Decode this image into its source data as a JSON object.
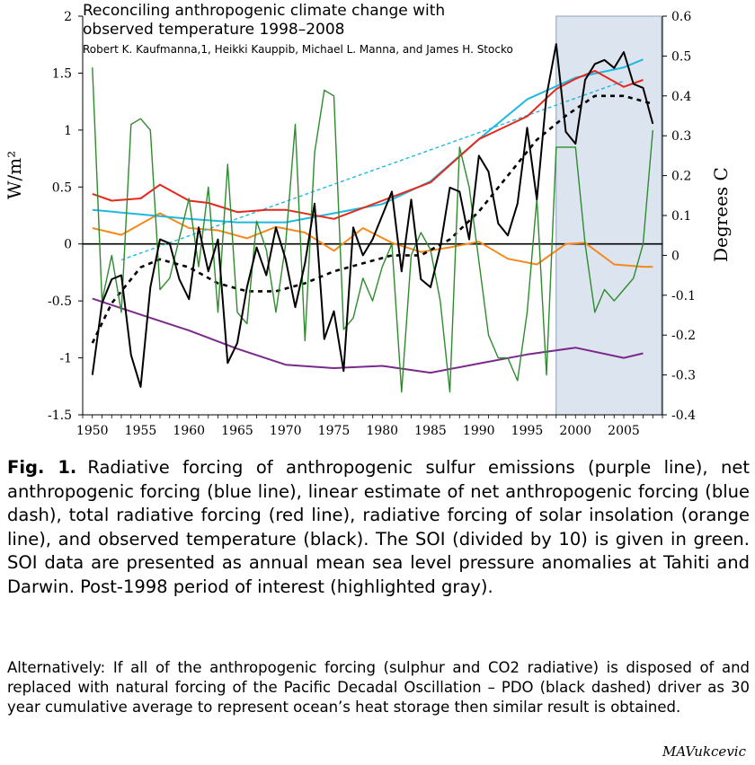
{
  "chart_data": {
    "type": "line",
    "title": "Reconciling anthropogenic climate change with observed temperature 1998–2008",
    "subtitle": "Robert K. Kaufmanna,1, Heikki Kauppib, Michael L. Manna, and James H. Stocko",
    "ylabel": "W/m²",
    "ylabel_right": "Degrees C",
    "xlim": [
      1949,
      2009
    ],
    "ylim": [
      -1.5,
      2
    ],
    "ylim_right": [
      -0.4,
      0.6
    ],
    "x_ticks": [
      1950,
      1955,
      1960,
      1965,
      1970,
      1975,
      1980,
      1985,
      1990,
      1995,
      2000,
      2005
    ],
    "y_ticks": [
      -1.5,
      -1,
      -0.5,
      0,
      0.5,
      1,
      1.5,
      2
    ],
    "y_tick_labels": [
      "-1.5",
      "-1",
      "-0.5",
      "0",
      "0.5",
      "1",
      "1.5",
      "2"
    ],
    "y2_ticks": [
      -0.4,
      -0.3,
      -0.2,
      -0.1,
      0,
      0.1,
      0.2,
      0.3,
      0.4,
      0.5,
      0.6
    ],
    "y2_tick_labels": [
      "-0.4",
      "-0.3",
      "-0.2",
      "-0.1",
      "0",
      "0.1",
      "0.2",
      "0.3",
      "0.4",
      "0.5",
      "0.6"
    ],
    "highlight": {
      "x_start": 1998,
      "x_end": 2009,
      "color": "#dbe4ef"
    },
    "zero_line": 0,
    "series": [
      {
        "key": "sulfur",
        "axis": "left",
        "color": "#7a2a8a",
        "dashed": false,
        "x": [
          1950,
          1955,
          1960,
          1965,
          1970,
          1975,
          1980,
          1985,
          1990,
          1995,
          2000,
          2005,
          2007
        ],
        "values": [
          -0.48,
          -0.62,
          -0.76,
          -0.92,
          -1.06,
          -1.09,
          -1.07,
          -1.13,
          -1.05,
          -0.97,
          -0.91,
          -1.0,
          -0.96
        ]
      },
      {
        "key": "net_anthro",
        "axis": "left",
        "color": "#1fb8e0",
        "dashed": false,
        "x": [
          1950,
          1955,
          1960,
          1965,
          1970,
          1975,
          1980,
          1985,
          1990,
          1995,
          2000,
          2005,
          2007
        ],
        "values": [
          0.3,
          0.26,
          0.22,
          0.19,
          0.19,
          0.27,
          0.35,
          0.55,
          0.92,
          1.27,
          1.46,
          1.55,
          1.62
        ]
      },
      {
        "key": "net_linear",
        "axis": "left",
        "color": "#1fb8e0",
        "dashed": true,
        "x": [
          1953,
          2005
        ],
        "values": [
          -0.14,
          1.43
        ]
      },
      {
        "key": "total",
        "axis": "left",
        "color": "#e8271c",
        "dashed": false,
        "x": [
          1950,
          1952,
          1955,
          1957,
          1960,
          1962,
          1965,
          1968,
          1970,
          1975,
          1980,
          1985,
          1990,
          1995,
          1998,
          2000,
          2002,
          2005,
          2007
        ],
        "values": [
          0.44,
          0.38,
          0.4,
          0.52,
          0.38,
          0.36,
          0.28,
          0.3,
          0.3,
          0.22,
          0.38,
          0.54,
          0.92,
          1.12,
          1.36,
          1.45,
          1.52,
          1.38,
          1.44
        ]
      },
      {
        "key": "solar",
        "axis": "left",
        "color": "#f7881c",
        "dashed": false,
        "x": [
          1950,
          1953,
          1957,
          1960,
          1963,
          1966,
          1969,
          1972,
          1975,
          1978,
          1981,
          1984,
          1987,
          1990,
          1993,
          1996,
          1999,
          2001,
          2004,
          2007,
          2008
        ],
        "values": [
          0.14,
          0.08,
          0.27,
          0.14,
          0.12,
          0.05,
          0.15,
          0.1,
          -0.06,
          0.14,
          0.01,
          -0.07,
          -0.03,
          0.02,
          -0.13,
          -0.18,
          0.0,
          0.01,
          -0.18,
          -0.2,
          -0.2
        ]
      },
      {
        "key": "temperature",
        "axis": "right",
        "color": "#000000",
        "dashed": false,
        "x": [
          1950,
          1951,
          1952,
          1953,
          1954,
          1955,
          1956,
          1957,
          1958,
          1959,
          1960,
          1961,
          1962,
          1963,
          1964,
          1965,
          1966,
          1967,
          1968,
          1969,
          1970,
          1971,
          1972,
          1973,
          1974,
          1975,
          1976,
          1977,
          1978,
          1979,
          1980,
          1981,
          1982,
          1983,
          1984,
          1985,
          1986,
          1987,
          1988,
          1989,
          1990,
          1991,
          1992,
          1993,
          1994,
          1995,
          1996,
          1997,
          1998,
          1999,
          2000,
          2001,
          2002,
          2003,
          2004,
          2005,
          2006,
          2007,
          2008
        ],
        "values": [
          -0.3,
          -0.12,
          -0.06,
          -0.05,
          -0.25,
          -0.33,
          -0.08,
          0.04,
          0.03,
          -0.06,
          -0.11,
          0.07,
          -0.04,
          0.04,
          -0.27,
          -0.22,
          -0.08,
          0.02,
          -0.05,
          0.07,
          -0.01,
          -0.13,
          -0.02,
          0.13,
          -0.21,
          -0.14,
          -0.29,
          0.07,
          0.0,
          0.04,
          0.1,
          0.16,
          -0.04,
          0.14,
          -0.06,
          -0.08,
          0.02,
          0.17,
          0.16,
          0.04,
          0.25,
          0.21,
          0.08,
          0.05,
          0.13,
          0.32,
          0.14,
          0.4,
          0.53,
          0.31,
          0.28,
          0.44,
          0.48,
          0.49,
          0.47,
          0.51,
          0.43,
          0.42,
          0.33
        ]
      },
      {
        "key": "pdo",
        "axis": "right",
        "color": "#000000",
        "dashed": true,
        "x": [
          1950,
          1952,
          1955,
          1957,
          1960,
          1963,
          1966,
          1969,
          1972,
          1975,
          1978,
          1981,
          1984,
          1987,
          1990,
          1993,
          1996,
          1999,
          2002,
          2005,
          2008
        ],
        "values": [
          -0.22,
          -0.12,
          -0.03,
          -0.01,
          -0.03,
          -0.07,
          -0.09,
          -0.09,
          -0.07,
          -0.04,
          -0.02,
          0.0,
          0.0,
          0.04,
          0.11,
          0.2,
          0.29,
          0.35,
          0.4,
          0.4,
          0.38
        ]
      },
      {
        "key": "soi",
        "axis": "left",
        "color": "#2e8b2e",
        "dashed": false,
        "x": [
          1950,
          1951,
          1952,
          1953,
          1954,
          1955,
          1956,
          1957,
          1958,
          1959,
          1960,
          1961,
          1962,
          1963,
          1964,
          1965,
          1966,
          1967,
          1968,
          1969,
          1970,
          1971,
          1972,
          1973,
          1974,
          1975,
          1976,
          1977,
          1978,
          1979,
          1980,
          1981,
          1982,
          1983,
          1984,
          1985,
          1986,
          1987,
          1988,
          1989,
          1990,
          1991,
          1992,
          1993,
          1994,
          1995,
          1996,
          1997,
          1998,
          1999,
          2000,
          2001,
          2002,
          2003,
          2004,
          2005,
          2006,
          2007,
          2008
        ],
        "values": [
          1.55,
          -0.5,
          -0.1,
          -0.6,
          1.05,
          1.1,
          1.0,
          -0.4,
          -0.3,
          0.05,
          0.4,
          -0.2,
          0.5,
          -0.6,
          0.7,
          -0.6,
          -0.7,
          0.2,
          -0.05,
          -0.6,
          0.0,
          1.05,
          -0.85,
          0.8,
          1.35,
          1.3,
          -0.75,
          -0.65,
          -0.3,
          -0.5,
          -0.2,
          0.0,
          -1.3,
          -0.1,
          0.1,
          -0.05,
          -0.5,
          -1.3,
          0.85,
          0.5,
          -0.15,
          -0.8,
          -1.0,
          -1.0,
          -1.2,
          -0.6,
          0.4,
          -1.15,
          0.85,
          0.85,
          0.85,
          0.0,
          -0.6,
          -0.4,
          -0.5,
          -0.4,
          -0.3,
          0.0,
          1.0
        ]
      }
    ]
  },
  "caption": {
    "label": "Fig. 1.",
    "text": "Radiative forcing of anthropogenic sulfur emissions (purple line), net anthropogenic forcing (blue line), linear estimate of net anthropogenic forcing (blue dash), total radiative forcing (red line), radiative forcing of solar insolation (orange line), and observed temperature (black). The SOI (divided by 10) is given in green. SOI data are presented as annual mean sea level pressure anomalies at Tahiti and Darwin. Post-1998 period of interest (highlighted gray)."
  },
  "note": "Alternatively: If all of the anthropogenic forcing (sulphur and CO2 radiative) is disposed of and replaced with natural forcing of the Pacific Decadal Oscillation – PDO (black dashed) driver as 30 year cumulative average to represent ocean’s heat storage then similar result is obtained.",
  "signature": "MAVukcevic"
}
